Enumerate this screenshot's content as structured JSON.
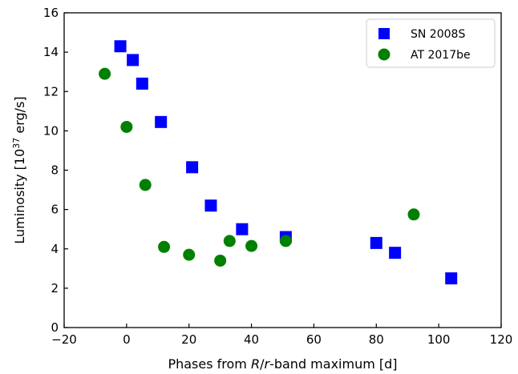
{
  "chart_data": {
    "type": "scatter",
    "title": "",
    "xlabel_parts": [
      {
        "text": "Phases from ",
        "italic": false
      },
      {
        "text": "R",
        "italic": true
      },
      {
        "text": "/",
        "italic": false
      },
      {
        "text": "r",
        "italic": true
      },
      {
        "text": "-band maximum [d]",
        "italic": false
      }
    ],
    "ylabel_parts": [
      {
        "text": "Luminosity [10",
        "sup": false
      },
      {
        "text": "37",
        "sup": true
      },
      {
        "text": " erg/s]",
        "sup": false
      }
    ],
    "xlim": [
      -20,
      120
    ],
    "ylim": [
      0,
      16
    ],
    "xticks": [
      -20,
      0,
      20,
      40,
      60,
      80,
      100,
      120
    ],
    "yticks": [
      0,
      2,
      4,
      6,
      8,
      10,
      12,
      14,
      16
    ],
    "xtick_labels": [
      "−20",
      "0",
      "20",
      "40",
      "60",
      "80",
      "100",
      "120"
    ],
    "ytick_labels": [
      "0",
      "2",
      "4",
      "6",
      "8",
      "10",
      "12",
      "14",
      "16"
    ],
    "grid": false,
    "legend_position": "top-right",
    "series": [
      {
        "name": "SN 2008S",
        "marker": "square",
        "color": "#0000ff",
        "points": [
          {
            "x": -2,
            "y": 14.3
          },
          {
            "x": 2,
            "y": 13.6
          },
          {
            "x": 5,
            "y": 12.4
          },
          {
            "x": 11,
            "y": 10.45
          },
          {
            "x": 21,
            "y": 8.15
          },
          {
            "x": 27,
            "y": 6.2
          },
          {
            "x": 37,
            "y": 5.0
          },
          {
            "x": 51,
            "y": 4.6
          },
          {
            "x": 80,
            "y": 4.3
          },
          {
            "x": 86,
            "y": 3.8
          },
          {
            "x": 104,
            "y": 2.5
          }
        ]
      },
      {
        "name": "AT 2017be",
        "marker": "circle",
        "color": "#008000",
        "points": [
          {
            "x": -7,
            "y": 12.9
          },
          {
            "x": 0,
            "y": 10.2
          },
          {
            "x": 6,
            "y": 7.25
          },
          {
            "x": 12,
            "y": 4.1
          },
          {
            "x": 20,
            "y": 3.7
          },
          {
            "x": 30,
            "y": 3.4
          },
          {
            "x": 33,
            "y": 4.4
          },
          {
            "x": 40,
            "y": 4.15
          },
          {
            "x": 51,
            "y": 4.4
          },
          {
            "x": 92,
            "y": 5.75
          }
        ]
      }
    ]
  }
}
